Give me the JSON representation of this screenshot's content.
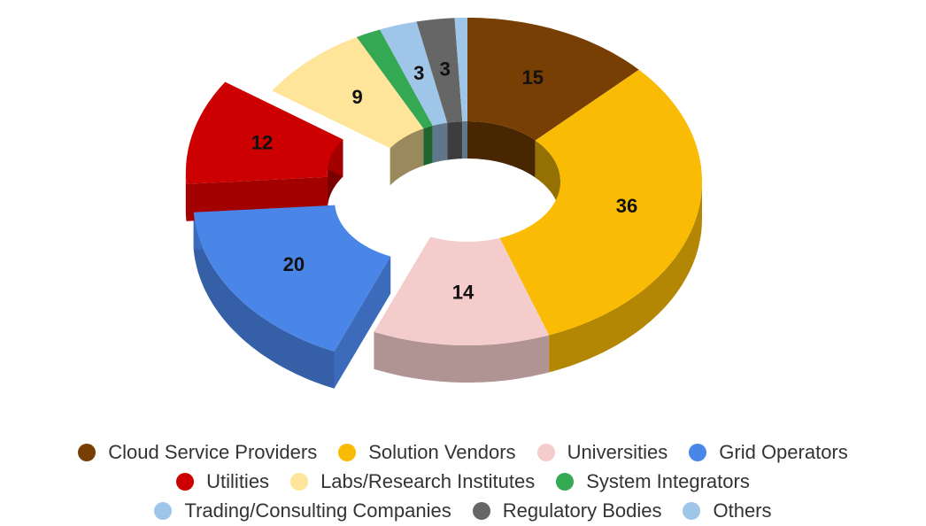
{
  "chart_data": {
    "type": "donut3d",
    "categories": [
      "Cloud Service Providers",
      "Solution Vendors",
      "Universities",
      "Grid Operators",
      "Utilities",
      "Labs/Research Institutes",
      "System Integrators",
      "Trading/Consulting Companies",
      "Regulatory Bodies",
      "Others"
    ],
    "values": [
      15,
      36,
      14,
      20,
      12,
      9,
      2,
      3,
      3,
      1
    ],
    "value_labels": [
      "15",
      "36",
      "14",
      "20",
      "12",
      "9",
      null,
      "3",
      "3",
      null
    ],
    "colors": [
      "#783f04",
      "#f9bb04",
      "#f4cccc",
      "#4a86e8",
      "#cc0000",
      "#ffe599",
      "#34a853",
      "#9fc5e8",
      "#666666",
      "#9fc5e8"
    ],
    "explode": [
      false,
      false,
      false,
      true,
      true,
      false,
      false,
      false,
      false,
      false
    ],
    "legend": "bottom"
  }
}
